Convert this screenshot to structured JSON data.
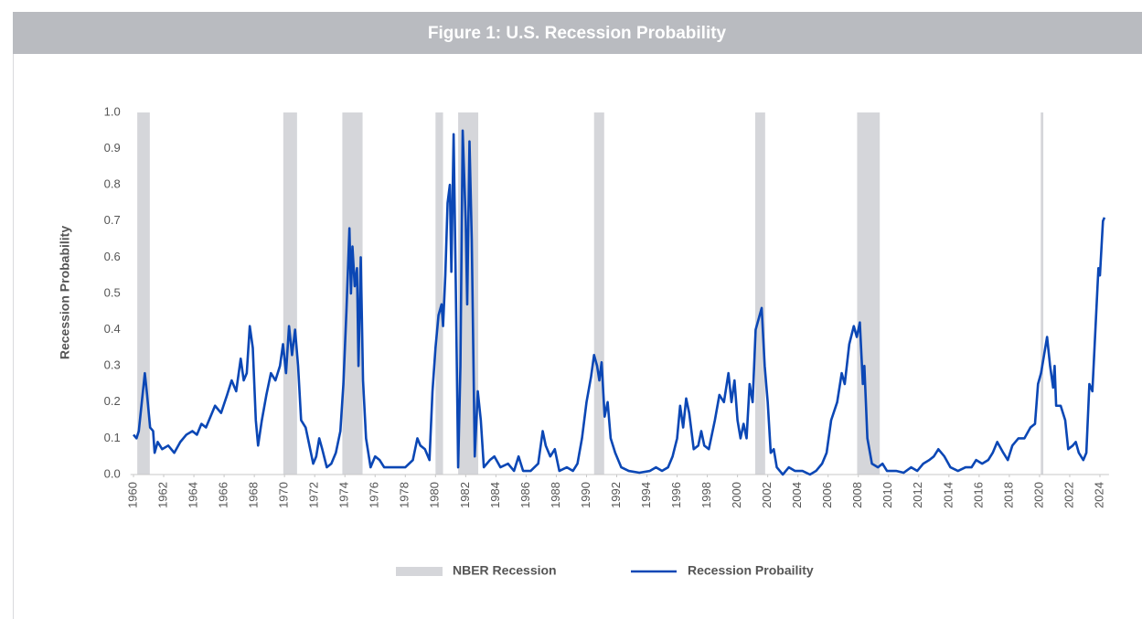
{
  "chart_data": {
    "type": "line",
    "title": "Figure 1: U.S. Recession Probability",
    "y_label": "Recession Probability",
    "xlim": [
      1959.8,
      2024.6
    ],
    "ylim": [
      0,
      1
    ],
    "xticks": [
      1960,
      1962,
      1964,
      1966,
      1968,
      1970,
      1972,
      1974,
      1976,
      1978,
      1980,
      1982,
      1984,
      1986,
      1988,
      1990,
      1992,
      1994,
      1996,
      1998,
      2000,
      2002,
      2004,
      2006,
      2008,
      2010,
      2012,
      2014,
      2016,
      2018,
      2020,
      2022,
      2024
    ],
    "yticks": [
      {
        "value": 0,
        "label": "0.0"
      },
      {
        "value": 0.1,
        "label": "0.1"
      },
      {
        "value": 0.2,
        "label": "0.2"
      },
      {
        "value": 0.3,
        "label": "0.3"
      },
      {
        "value": 0.4,
        "label": "0.4"
      },
      {
        "value": 0.5,
        "label": "0.5"
      },
      {
        "value": 0.6,
        "label": "0.6"
      },
      {
        "value": 0.7,
        "label": "0.7"
      },
      {
        "value": 0.8,
        "label": "0.8"
      },
      {
        "value": 0.9,
        "label": "0.9"
      },
      {
        "value": 1,
        "label": "1.0"
      }
    ],
    "legend": "bottom",
    "shading": {
      "name": "NBER Recession",
      "color": "#d5d6da",
      "start": [
        1960.25,
        1969.92,
        1973.83,
        1980.0,
        1981.5,
        1990.5,
        2001.17,
        2007.92,
        2020.08
      ],
      "end": [
        1961.08,
        1970.83,
        1975.17,
        1980.5,
        1982.83,
        1991.17,
        2001.83,
        2009.42,
        2020.25
      ]
    },
    "series": [
      {
        "name": "Recession Probaility",
        "color": "#0b47b5",
        "x": [
          1960,
          1960.2,
          1960.35,
          1960.55,
          1960.75,
          1960.9,
          1961.1,
          1961.3,
          1961.4,
          1961.6,
          1961.9,
          1962.3,
          1962.7,
          1963.1,
          1963.5,
          1963.9,
          1964.2,
          1964.5,
          1964.8,
          1965,
          1965.4,
          1965.8,
          1966.2,
          1966.5,
          1966.8,
          1967.1,
          1967.3,
          1967.5,
          1967.7,
          1967.9,
          1968.1,
          1968.25,
          1968.5,
          1968.8,
          1969.1,
          1969.4,
          1969.7,
          1969.9,
          1970.1,
          1970.3,
          1970.5,
          1970.7,
          1970.9,
          1971.1,
          1971.4,
          1971.7,
          1971.9,
          1972.1,
          1972.3,
          1972.5,
          1972.8,
          1973.1,
          1973.4,
          1973.7,
          1973.9,
          1974.1,
          1974.3,
          1974.4,
          1974.5,
          1974.65,
          1974.8,
          1974.9,
          1975.05,
          1975.2,
          1975.4,
          1975.7,
          1976,
          1976.3,
          1976.6,
          1977,
          1977.5,
          1978,
          1978.5,
          1978.8,
          1979,
          1979.3,
          1979.6,
          1979.8,
          1980,
          1980.2,
          1980.4,
          1980.5,
          1980.65,
          1980.8,
          1980.95,
          1981.05,
          1981.2,
          1981.35,
          1981.5,
          1981.65,
          1981.8,
          1982,
          1982.1,
          1982.25,
          1982.4,
          1982.6,
          1982.8,
          1983,
          1983.2,
          1983.6,
          1983.9,
          1984.3,
          1984.8,
          1985.2,
          1985.5,
          1985.8,
          1986.3,
          1986.8,
          1987.1,
          1987.3,
          1987.6,
          1987.9,
          1988.2,
          1988.7,
          1989.1,
          1989.4,
          1989.7,
          1990,
          1990.3,
          1990.5,
          1990.7,
          1990.85,
          1991,
          1991.2,
          1991.4,
          1991.6,
          1991.9,
          1992.3,
          1992.8,
          1993.5,
          1994.2,
          1994.6,
          1995,
          1995.4,
          1995.7,
          1996,
          1996.2,
          1996.4,
          1996.6,
          1996.8,
          1997.1,
          1997.4,
          1997.6,
          1997.8,
          1998.1,
          1998.5,
          1998.8,
          1999.1,
          1999.4,
          1999.6,
          1999.8,
          2000,
          2000.2,
          2000.4,
          2000.6,
          2000.8,
          2001,
          2001.2,
          2001.4,
          2001.6,
          2001.8,
          2002,
          2002.2,
          2002.4,
          2002.6,
          2003,
          2003.4,
          2003.8,
          2004.3,
          2004.8,
          2005.2,
          2005.6,
          2005.9,
          2006.2,
          2006.6,
          2006.9,
          2007.1,
          2007.4,
          2007.7,
          2007.9,
          2008.1,
          2008.3,
          2008.4,
          2008.6,
          2008.9,
          2009.3,
          2009.6,
          2009.9,
          2010.5,
          2011,
          2011.5,
          2011.9,
          2012.3,
          2012.7,
          2013,
          2013.3,
          2013.7,
          2014.1,
          2014.6,
          2015.1,
          2015.5,
          2015.8,
          2016.2,
          2016.6,
          2016.9,
          2017.2,
          2017.6,
          2017.9,
          2018.2,
          2018.6,
          2019,
          2019.4,
          2019.7,
          2019.9,
          2020.1,
          2020.3,
          2020.5,
          2020.7,
          2020.9,
          2021,
          2021.1,
          2021.4,
          2021.7,
          2021.9,
          2022.2,
          2022.4,
          2022.6,
          2022.9,
          2023.1,
          2023.3,
          2023.5,
          2023.7,
          2023.9,
          2024,
          2024.2,
          2024.3
        ],
        "values": [
          0.11,
          0.1,
          0.12,
          0.2,
          0.28,
          0.22,
          0.13,
          0.12,
          0.06,
          0.09,
          0.07,
          0.08,
          0.06,
          0.09,
          0.11,
          0.12,
          0.11,
          0.14,
          0.13,
          0.15,
          0.19,
          0.17,
          0.22,
          0.26,
          0.23,
          0.32,
          0.26,
          0.28,
          0.41,
          0.35,
          0.15,
          0.08,
          0.15,
          0.22,
          0.28,
          0.26,
          0.3,
          0.36,
          0.28,
          0.41,
          0.33,
          0.4,
          0.3,
          0.15,
          0.13,
          0.07,
          0.03,
          0.05,
          0.1,
          0.07,
          0.02,
          0.03,
          0.06,
          0.12,
          0.25,
          0.45,
          0.68,
          0.5,
          0.63,
          0.52,
          0.57,
          0.3,
          0.6,
          0.26,
          0.1,
          0.02,
          0.05,
          0.04,
          0.02,
          0.02,
          0.02,
          0.02,
          0.04,
          0.1,
          0.08,
          0.07,
          0.04,
          0.23,
          0.35,
          0.44,
          0.47,
          0.41,
          0.55,
          0.75,
          0.8,
          0.56,
          0.94,
          0.5,
          0.02,
          0.3,
          0.95,
          0.7,
          0.47,
          0.92,
          0.65,
          0.05,
          0.23,
          0.15,
          0.02,
          0.04,
          0.05,
          0.02,
          0.03,
          0.01,
          0.05,
          0.01,
          0.01,
          0.03,
          0.12,
          0.08,
          0.05,
          0.07,
          0.01,
          0.02,
          0.01,
          0.03,
          0.1,
          0.2,
          0.27,
          0.33,
          0.3,
          0.26,
          0.31,
          0.16,
          0.2,
          0.1,
          0.06,
          0.02,
          0.01,
          0.005,
          0.01,
          0.02,
          0.01,
          0.02,
          0.05,
          0.1,
          0.19,
          0.13,
          0.21,
          0.17,
          0.07,
          0.08,
          0.12,
          0.08,
          0.07,
          0.15,
          0.22,
          0.2,
          0.28,
          0.2,
          0.26,
          0.15,
          0.1,
          0.14,
          0.1,
          0.25,
          0.2,
          0.4,
          0.43,
          0.46,
          0.3,
          0.2,
          0.06,
          0.07,
          0.02,
          0,
          0.02,
          0.01,
          0.01,
          0,
          0.01,
          0.03,
          0.06,
          0.15,
          0.2,
          0.28,
          0.25,
          0.36,
          0.41,
          0.38,
          0.42,
          0.25,
          0.3,
          0.1,
          0.03,
          0.02,
          0.03,
          0.01,
          0.01,
          0.005,
          0.02,
          0.01,
          0.03,
          0.04,
          0.05,
          0.07,
          0.05,
          0.02,
          0.01,
          0.02,
          0.02,
          0.04,
          0.03,
          0.04,
          0.06,
          0.09,
          0.06,
          0.04,
          0.08,
          0.1,
          0.1,
          0.13,
          0.14,
          0.25,
          0.28,
          0.33,
          0.38,
          0.3,
          0.24,
          0.3,
          0.19,
          0.19,
          0.15,
          0.07,
          0.08,
          0.09,
          0.06,
          0.04,
          0.06,
          0.25,
          0.23,
          0.4,
          0.57,
          0.55,
          0.7,
          0.71
        ]
      }
    ]
  }
}
